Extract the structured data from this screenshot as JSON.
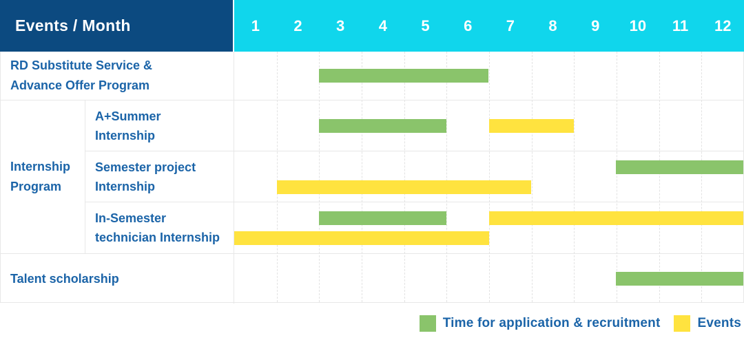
{
  "header": {
    "corner_label": "Events / Month",
    "months": [
      "1",
      "2",
      "3",
      "4",
      "5",
      "6",
      "7",
      "8",
      "9",
      "10",
      "11",
      "12"
    ]
  },
  "colors": {
    "header_navy": "#0c4a80",
    "header_cyan": "#10d6ec",
    "application_green": "#8ac46b",
    "events_yellow": "#ffe33f",
    "label_blue": "#1b64a8",
    "gridline_gray": "#e7e7e7"
  },
  "legend": {
    "items": [
      {
        "key": "application",
        "label": "Time for application & recruitment",
        "color": "#8ac46b"
      },
      {
        "key": "events",
        "label": "Events",
        "color": "#ffe33f"
      }
    ]
  },
  "chart_data": {
    "type": "gantt",
    "title": "Events / Month",
    "x_unit": "month",
    "x_range": [
      1,
      12
    ],
    "grid": true,
    "legend_position": "bottom-right",
    "series_types": {
      "application": "Time for application & recruitment",
      "events": "Events"
    },
    "groups": [
      {
        "id": "internship-program",
        "label_lines": [
          "Internship",
          "Program"
        ],
        "row_ids": [
          "a-summer-internship",
          "semester-project-internship",
          "in-semester-technician-internship"
        ]
      }
    ],
    "rows": [
      {
        "id": "rd-substitute",
        "label_lines": [
          "RD Substitute Service &",
          "Advance Offer Program"
        ],
        "group": null,
        "bars": [
          {
            "series": "application",
            "start_month": 3,
            "end_month": 6,
            "lane": "center"
          }
        ]
      },
      {
        "id": "a-summer-internship",
        "label_lines": [
          "A+Summer",
          "Internship"
        ],
        "group": "internship-program",
        "bars": [
          {
            "series": "application",
            "start_month": 3,
            "end_month": 5,
            "lane": "center"
          },
          {
            "series": "events",
            "start_month": 7,
            "end_month": 8,
            "lane": "center"
          }
        ]
      },
      {
        "id": "semester-project-internship",
        "label_lines": [
          "Semester project",
          "Internship"
        ],
        "group": "internship-program",
        "bars": [
          {
            "series": "application",
            "start_month": 10,
            "end_month": 12,
            "lane": "top"
          },
          {
            "series": "events",
            "start_month": 2,
            "end_month": 7,
            "lane": "bottom"
          }
        ]
      },
      {
        "id": "in-semester-technician-internship",
        "label_lines": [
          "In-Semester",
          "technician Internship"
        ],
        "group": "internship-program",
        "bars": [
          {
            "series": "application",
            "start_month": 3,
            "end_month": 5,
            "lane": "top"
          },
          {
            "series": "events",
            "start_month": 7,
            "end_month": 12,
            "lane": "top"
          },
          {
            "series": "events",
            "start_month": 1,
            "end_month": 6,
            "lane": "bottom"
          }
        ]
      },
      {
        "id": "talent-scholarship",
        "label_lines": [
          "Talent scholarship"
        ],
        "group": null,
        "bars": [
          {
            "series": "application",
            "start_month": 10,
            "end_month": 12,
            "lane": "center"
          }
        ]
      }
    ]
  }
}
